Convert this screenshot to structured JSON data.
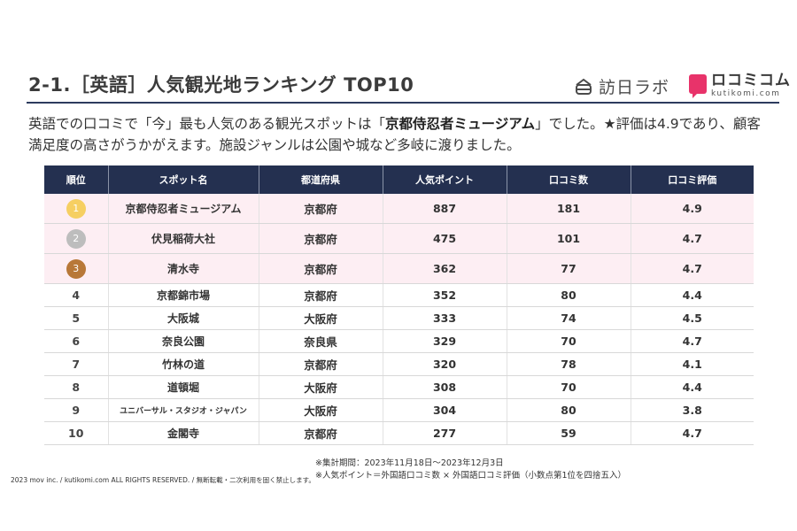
{
  "header": {
    "title": "2-1.［英語］人気観光地ランキング TOP10",
    "logo_lab_text": "訪日ラボ",
    "logo_kk_main": "ロコミコム",
    "logo_kk_sub": "kutikomi.com"
  },
  "description": {
    "part1": "英語での口コミで「今」最も人気のある観光スポットは「",
    "highlight": "京都侍忍者ミュージアム",
    "part2": "」でした。★評価は4.9であり、顧客満足度の高さがうかがえます。施設ジャンルは公園や城など多岐に渡りました。"
  },
  "table": {
    "headers": [
      "順位",
      "スポット名",
      "都道府県",
      "人気ポイント",
      "口コミ数",
      "口コミ評価"
    ],
    "medal_colors": [
      "#f6cf62",
      "#bdbdbd",
      "#b87838"
    ],
    "rows": [
      {
        "rank": "1",
        "name": "京都侍忍者ミュージアム",
        "pref": "京都府",
        "points": "887",
        "reviews": "181",
        "rating": "4.9"
      },
      {
        "rank": "2",
        "name": "伏見稲荷大社",
        "pref": "京都府",
        "points": "475",
        "reviews": "101",
        "rating": "4.7"
      },
      {
        "rank": "3",
        "name": "清水寺",
        "pref": "京都府",
        "points": "362",
        "reviews": "77",
        "rating": "4.7"
      },
      {
        "rank": "4",
        "name": "京都錦市場",
        "pref": "京都府",
        "points": "352",
        "reviews": "80",
        "rating": "4.4"
      },
      {
        "rank": "5",
        "name": "大阪城",
        "pref": "大阪府",
        "points": "333",
        "reviews": "74",
        "rating": "4.5"
      },
      {
        "rank": "6",
        "name": "奈良公園",
        "pref": "奈良県",
        "points": "329",
        "reviews": "70",
        "rating": "4.7"
      },
      {
        "rank": "7",
        "name": "竹林の道",
        "pref": "京都府",
        "points": "320",
        "reviews": "78",
        "rating": "4.1"
      },
      {
        "rank": "8",
        "name": "道頓堀",
        "pref": "大阪府",
        "points": "308",
        "reviews": "70",
        "rating": "4.4"
      },
      {
        "rank": "9",
        "name": "ユニバーサル・スタジオ・ジャパン",
        "pref": "大阪府",
        "points": "304",
        "reviews": "80",
        "rating": "3.8"
      },
      {
        "rank": "10",
        "name": "金閣寺",
        "pref": "京都府",
        "points": "277",
        "reviews": "59",
        "rating": "4.7"
      }
    ]
  },
  "notes": {
    "line1": "※集計期間：2023年11月18日～2023年12月3日",
    "line2": "※人気ポイント＝外国語口コミ数 × 外国語口コミ評価（小数点第1位を四捨五入）"
  },
  "footer": {
    "copyright": "2023 mov inc. / kutikomi.com ALL RIGHTS RESERVED. / 無断転載・二次利用を固く禁止します。"
  }
}
